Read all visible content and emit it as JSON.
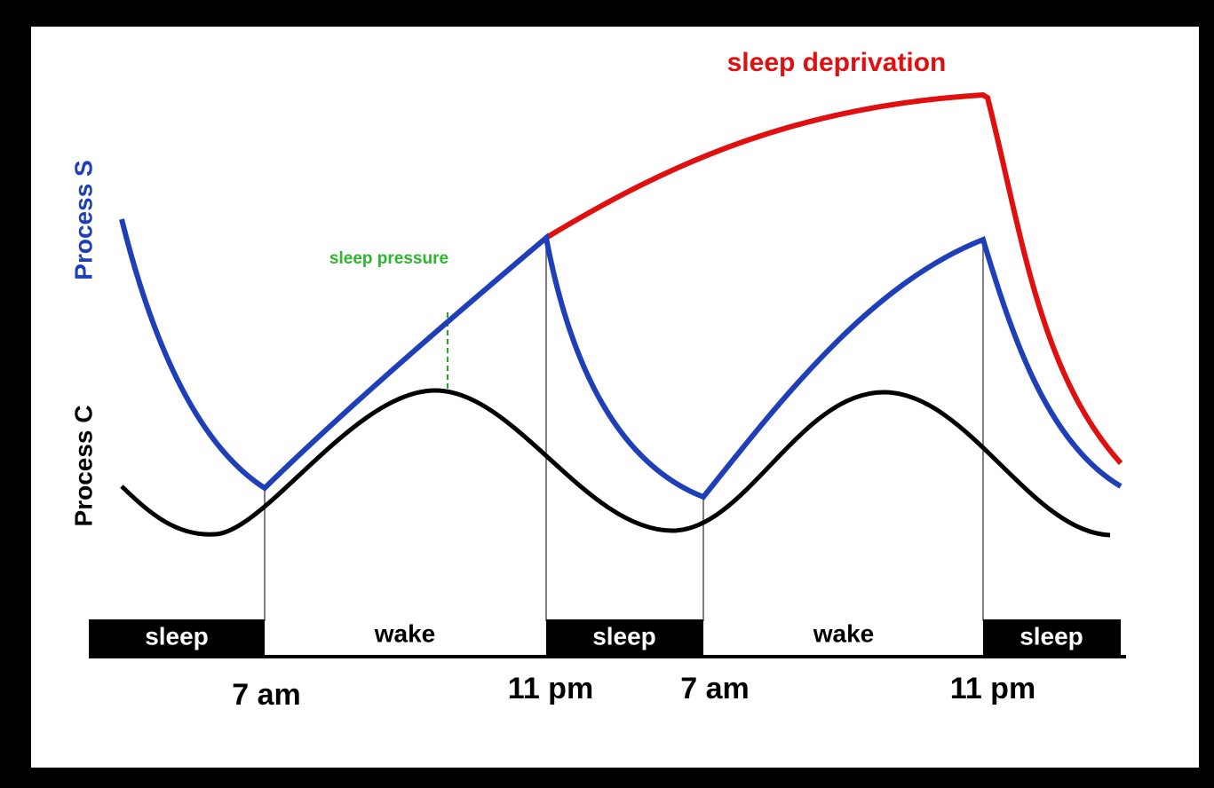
{
  "axis_labels": {
    "process_s": "Process S",
    "process_c": "Process C"
  },
  "annotations": {
    "sleep_deprivation": "sleep deprivation",
    "sleep_pressure": "sleep pressure"
  },
  "phases": [
    "sleep",
    "wake",
    "sleep",
    "wake",
    "sleep"
  ],
  "times": [
    "7 am",
    "11 pm",
    "7 am",
    "11 pm"
  ]
}
